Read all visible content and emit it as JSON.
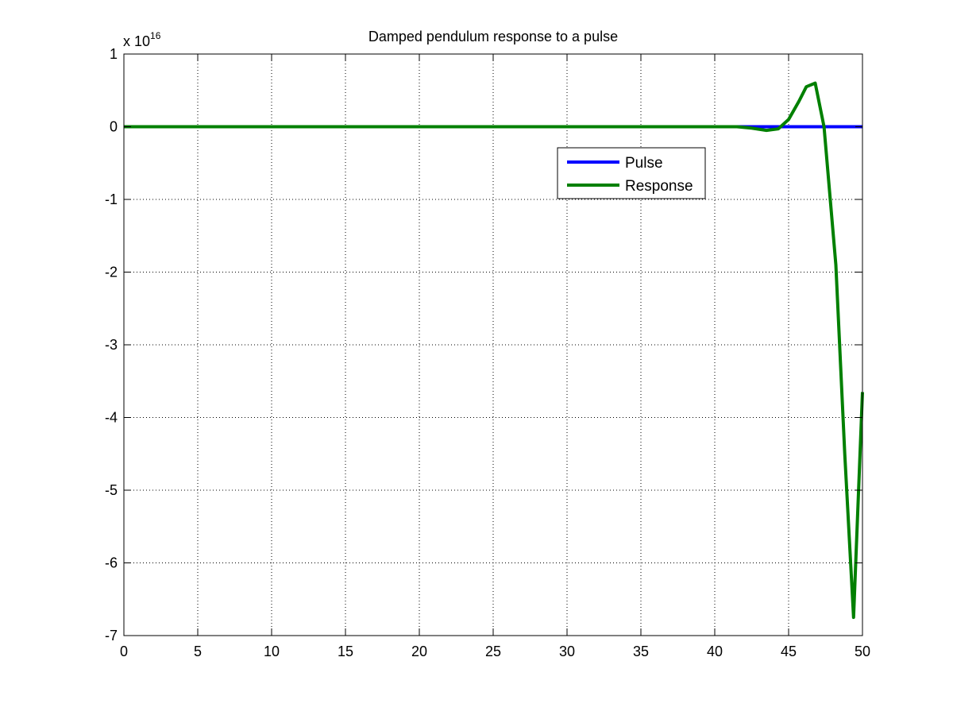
{
  "chart_data": {
    "type": "line",
    "title": "Damped pendulum response to a pulse",
    "xlabel": "",
    "ylabel": "",
    "xlim": [
      0,
      50
    ],
    "ylim": [
      -7,
      1
    ],
    "y_exponent_label": {
      "base": "x 10",
      "exponent": "16"
    },
    "grid": true,
    "legend_position": "upper-right-inside",
    "x_ticks": [
      0,
      5,
      10,
      15,
      20,
      25,
      30,
      35,
      40,
      45,
      50
    ],
    "y_ticks": [
      -7,
      -6,
      -5,
      -4,
      -3,
      -2,
      -1,
      0,
      1
    ],
    "series": [
      {
        "name": "Pulse",
        "color": "#0000ff",
        "x": [
          0,
          50
        ],
        "y": [
          0,
          0
        ]
      },
      {
        "name": "Response",
        "color": "#008000",
        "x": [
          0,
          5,
          10,
          20,
          30,
          40,
          41.5,
          42.5,
          43.5,
          44.3,
          45,
          45.7,
          46.2,
          46.8,
          47.4,
          48.2,
          48.8,
          49.4,
          50
        ],
        "y": [
          0,
          0,
          0,
          0,
          0,
          0,
          0,
          -0.02,
          -0.05,
          -0.03,
          0.1,
          0.35,
          0.55,
          0.6,
          0,
          -1.9,
          -4.5,
          -6.75,
          -3.65
        ]
      }
    ]
  }
}
